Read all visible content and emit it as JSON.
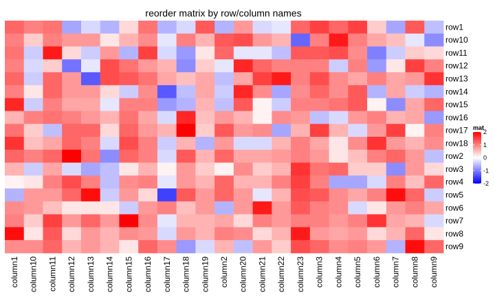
{
  "chart_data": {
    "type": "heatmap",
    "title": "reorder matrix by row/column names",
    "rows": [
      "row1",
      "row10",
      "row11",
      "row12",
      "row13",
      "row14",
      "row15",
      "row16",
      "row17",
      "row18",
      "row2",
      "row3",
      "row4",
      "row5",
      "row6",
      "row7",
      "row8",
      "row9"
    ],
    "columns": [
      "column1",
      "column10",
      "column11",
      "column12",
      "column13",
      "column14",
      "column15",
      "column16",
      "column17",
      "column18",
      "column19",
      "column2",
      "column20",
      "column21",
      "column22",
      "column23",
      "column3",
      "column4",
      "column5",
      "column6",
      "column7",
      "column8",
      "column9"
    ],
    "values": [
      [
        1.2,
        1.0,
        1.1,
        -0.7,
        -0.3,
        -0.6,
        0.3,
        1.1,
        -0.6,
        -0.3,
        1.3,
        -0.6,
        0.8,
        -0.3,
        -0.2,
        1.2,
        1.5,
        1.2,
        1.5,
        0.4,
        -0.7,
        1.3,
        -0.5
      ],
      [
        1.0,
        0.4,
        1.0,
        0.8,
        0.8,
        0.2,
        0.6,
        0.9,
        -0.2,
        1.0,
        0.6,
        1.3,
        1.4,
        0.8,
        0.6,
        -1.2,
        1.0,
        1.8,
        1.0,
        0.7,
        0.5,
        -0.2,
        -0.9
      ],
      [
        1.1,
        -0.4,
        1.8,
        0.3,
        -0.4,
        0.8,
        -0.6,
        1.5,
        -0.3,
        -0.8,
        0.2,
        1.2,
        -0.2,
        -0.2,
        -0.5,
        1.3,
        1.3,
        1.4,
        0.9,
        -1.0,
        -0.4,
        0.4,
        0.3
      ],
      [
        1.0,
        -0.3,
        0.4,
        -1.1,
        -0.2,
        1.4,
        1.1,
        0.8,
        0.6,
        -0.9,
        0.4,
        -0.2,
        1.7,
        1.2,
        1.0,
        1.0,
        1.0,
        -0.4,
        1.0,
        -0.8,
        0.2,
        1.5,
        1.0
      ],
      [
        1.2,
        -0.4,
        1.2,
        0.8,
        -1.3,
        1.4,
        1.3,
        1.1,
        0.7,
        0.5,
        0.7,
        -0.5,
        0.7,
        1.5,
        1.8,
        1.0,
        1.4,
        0.9,
        0.7,
        1.0,
        0.7,
        0.8,
        1.6
      ],
      [
        1.0,
        0.2,
        1.2,
        0.8,
        0.8,
        0.3,
        -0.4,
        0.9,
        -1.3,
        -0.5,
        0.7,
        -0.4,
        1.7,
        0.9,
        -0.7,
        0.9,
        1.2,
        0.9,
        1.3,
        -0.6,
        0.7,
        -0.4,
        -0.6
      ],
      [
        1.7,
        -0.4,
        1.0,
        0.7,
        0.7,
        -0.2,
        1.0,
        1.0,
        -0.8,
        -0.6,
        0.6,
        -0.5,
        1.3,
        0.1,
        -0.4,
        1.0,
        1.0,
        1.1,
        1.3,
        0.1,
        -0.9,
        0.7,
        1.2
      ],
      [
        0.6,
        1.0,
        1.1,
        1.0,
        0.8,
        0.6,
        1.1,
        0.7,
        -0.3,
        1.7,
        0.5,
        0.8,
        0.6,
        0.1,
        0.9,
        0.8,
        -0.5,
        -0.3,
        0.8,
        1.0,
        0.6,
        0.7,
        -0.8
      ],
      [
        1.1,
        0.4,
        -0.5,
        1.2,
        1.2,
        0.3,
        1.2,
        0.8,
        0.6,
        2.0,
        0.4,
        1.3,
        0.8,
        0.9,
        -0.7,
        0.6,
        1.5,
        0.6,
        -0.3,
        0.8,
        1.5,
        0.1,
        1.0
      ],
      [
        1.6,
        0.5,
        0.7,
        1.2,
        1.0,
        -0.3,
        1.4,
        1.0,
        -0.4,
        0.6,
        -0.6,
        0.8,
        -0.3,
        -0.3,
        0.6,
        1.0,
        0.7,
        0.2,
        0.9,
        1.6,
        0.8,
        0.6,
        0.9
      ],
      [
        1.2,
        1.0,
        1.2,
        2.0,
        1.1,
        -0.9,
        1.2,
        1.0,
        -0.3,
        1.3,
        0.6,
        1.2,
        0.7,
        0.7,
        0.8,
        1.0,
        0.8,
        0.2,
        0.5,
        1.0,
        1.2,
        0.8,
        -0.5
      ],
      [
        0.6,
        -0.4,
        0.7,
        -0.3,
        -0.7,
        -0.5,
        0.2,
        0.6,
        0.1,
        0.8,
        0.4,
        0.1,
        0.9,
        0.4,
        0.6,
        1.6,
        1.1,
        1.2,
        0.4,
        0.4,
        -0.9,
        0.8,
        0.3
      ],
      [
        0.1,
        0.2,
        1.0,
        1.4,
        1.0,
        -0.5,
        0.9,
        1.0,
        -0.2,
        0.8,
        0.6,
        1.2,
        0.6,
        0.6,
        1.0,
        1.5,
        1.0,
        -0.7,
        -0.7,
        -0.3,
        1.0,
        0.5,
        1.2
      ],
      [
        -0.6,
        0.8,
        0.8,
        1.2,
        1.9,
        -0.4,
        0.8,
        0.3,
        -1.5,
        1.3,
        0.8,
        1.2,
        0.8,
        -0.2,
        0.6,
        1.4,
        1.3,
        0.9,
        0.7,
        1.0,
        1.9,
        1.2,
        -0.4
      ],
      [
        0.9,
        0.8,
        0.5,
        0.2,
        0.2,
        0.2,
        -0.4,
        0.8,
        1.0,
        0.5,
        0.8,
        -0.6,
        0.8,
        1.8,
        0.8,
        1.3,
        1.0,
        0.9,
        -0.3,
        0.2,
        0.8,
        1.0,
        0.7
      ],
      [
        1.0,
        0.4,
        1.5,
        0.8,
        1.2,
        0.8,
        2.0,
        0.9,
        -0.2,
        0.6,
        0.6,
        0.7,
        0.3,
        1.0,
        0.8,
        1.0,
        1.0,
        0.8,
        1.0,
        1.6,
        0.7,
        0.6,
        -0.3
      ],
      [
        1.9,
        0.2,
        1.3,
        0.3,
        0.8,
        0.6,
        0.9,
        0.8,
        -0.3,
        0.8,
        0.6,
        1.0,
        0.9,
        0.3,
        0.6,
        1.8,
        0.8,
        0.7,
        0.8,
        0.3,
        0.6,
        1.2,
        0.2
      ],
      [
        0.9,
        0.9,
        1.2,
        0.6,
        0.8,
        0.6,
        0.2,
        1.2,
        0.9,
        -0.8,
        -0.3,
        0.6,
        -0.5,
        0.8,
        0.4,
        1.4,
        1.2,
        0.9,
        1.0,
        0.8,
        -0.6,
        1.9,
        1.2
      ]
    ],
    "legend": {
      "title": "mat",
      "ticks": [
        2,
        1,
        0,
        -1,
        -2
      ],
      "colors": {
        "low": "#0000FF",
        "mid": "#FFFFFF",
        "high": "#FF0000"
      },
      "range": [
        -2,
        2
      ]
    },
    "grid": false,
    "legend_position": "right"
  }
}
